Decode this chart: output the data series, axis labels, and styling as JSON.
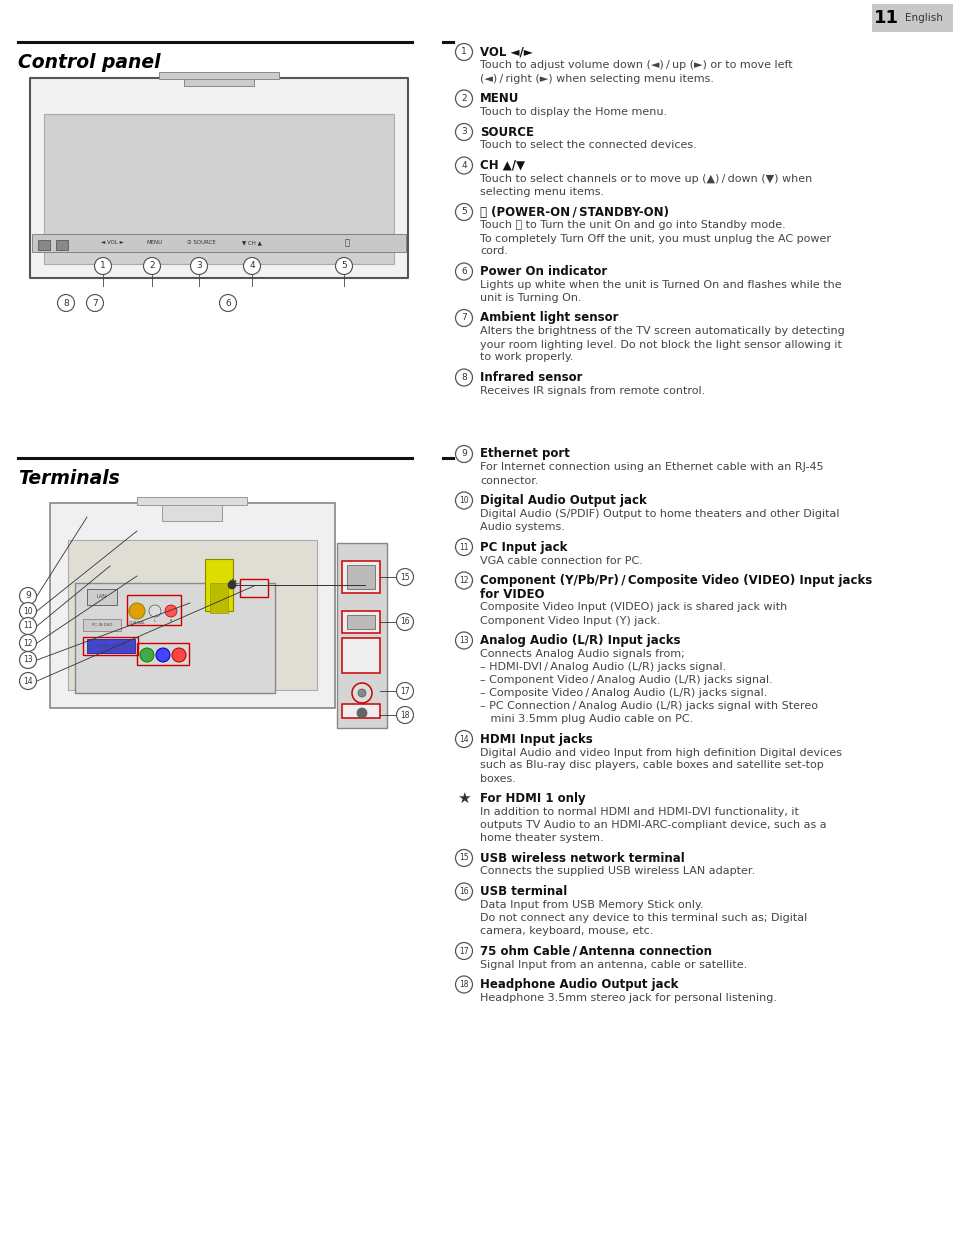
{
  "page_num": "11",
  "page_lang": "English",
  "bg_color": "#ffffff",
  "section1_title": "Control panel",
  "section2_title": "Terminals",
  "items_col1": [
    {
      "num": "1",
      "title": "VOL ◄/►",
      "body": "Touch to adjust volume down (◄) / up (►) or to move left\n(◄) / right (►) when selecting menu items."
    },
    {
      "num": "2",
      "title": "MENU",
      "body": "Touch to display the Home menu."
    },
    {
      "num": "3",
      "title": "SOURCE",
      "body": "Touch to select the connected devices."
    },
    {
      "num": "4",
      "title": "CH ▲/▼",
      "body": "Touch to select channels or to move up (▲) / down (▼) when\nselecting menu items."
    },
    {
      "num": "5",
      "title": "⏻ (POWER-ON / STANDBY-ON)",
      "body": "Touch ⏻ to Turn the unit On and go into Standby mode.\nTo completely Turn Off the unit, you must unplug the AC power\ncord."
    },
    {
      "num": "6",
      "title": "Power On indicator",
      "body": "Lights up white when the unit is Turned On and flashes while the\nunit is Turning On."
    },
    {
      "num": "7",
      "title": "Ambient light sensor",
      "body": "Alters the brightness of the TV screen automatically by detecting\nyour room lighting level. Do not block the light sensor allowing it\nto work properly."
    },
    {
      "num": "8",
      "title": "Infrared sensor",
      "body": "Receives IR signals from remote control."
    }
  ],
  "items_col2": [
    {
      "num": "9",
      "title": "Ethernet port",
      "body": "For Internet connection using an Ethernet cable with an RJ-45\nconnector."
    },
    {
      "num": "10",
      "title": "Digital Audio Output jack",
      "body": "Digital Audio (S/PDIF) Output to home theaters and other Digital\nAudio systems."
    },
    {
      "num": "11",
      "title": "PC Input jack",
      "body": "VGA cable connection for PC."
    },
    {
      "num": "12",
      "title": "Component (Y/Pb/Pr) / Composite Video (VIDEO) Input jacks\nfor VIDEO",
      "body": "Composite Video Input (VIDEO) jack is shared jack with\nComponent Video Input (Y) jack."
    },
    {
      "num": "13",
      "title": "Analog Audio (L/R) Input jacks",
      "body": "Connects Analog Audio signals from;\n– HDMI-DVI / Analog Audio (L/R) jacks signal.\n– Component Video / Analog Audio (L/R) jacks signal.\n– Composite Video / Analog Audio (L/R) jacks signal.\n– PC Connection / Analog Audio (L/R) jacks signal with Stereo\n   mini 3.5mm plug Audio cable on PC."
    },
    {
      "num": "14",
      "title": "HDMI Input jacks",
      "body": "Digital Audio and video Input from high definition Digital devices\nsuch as Blu-ray disc players, cable boxes and satellite set-top\nboxes."
    },
    {
      "num": "*",
      "title": "For HDMI 1 only",
      "body": "In addition to normal HDMI and HDMI-DVI functionality, it\noutputs TV Audio to an HDMI-ARC-compliant device, such as a\nhome theater system."
    },
    {
      "num": "15",
      "title": "USB wireless network terminal",
      "body": "Connects the supplied USB wireless LAN adapter."
    },
    {
      "num": "16",
      "title": "USB terminal",
      "body": "Data Input from USB Memory Stick only.\nDo not connect any device to this terminal such as; Digital\ncamera, keyboard, mouse, etc."
    },
    {
      "num": "17",
      "title": "75 ohm Cable / Antenna connection",
      "body": "Signal Input from an antenna, cable or satellite."
    },
    {
      "num": "18",
      "title": "Headphone Audio Output jack",
      "body": "Headphone 3.5mm stereo jack for personal listening."
    }
  ]
}
